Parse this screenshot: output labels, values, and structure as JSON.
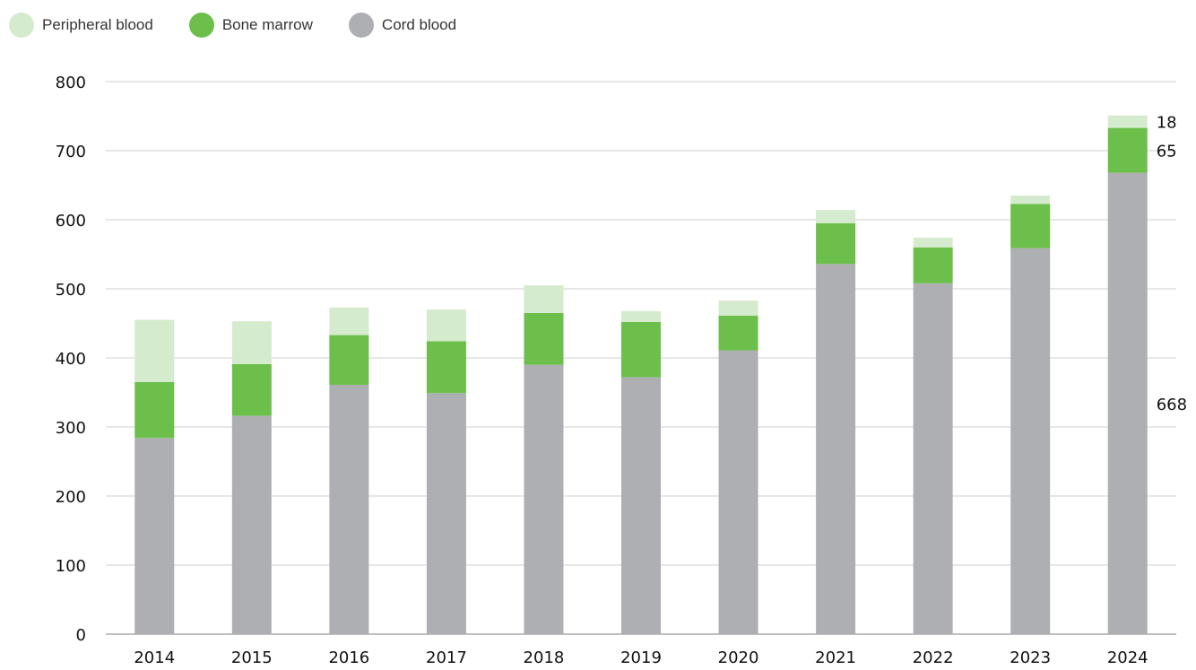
{
  "colors": {
    "peripheral_blood": "#d5ebcd",
    "bone_marrow": "#6cbf4a",
    "cord_blood": "#aeafb3",
    "grid": "#cfcfcf"
  },
  "chart_data": {
    "type": "bar",
    "stacked": true,
    "title": "",
    "xlabel": "",
    "ylabel": "",
    "ylim": [
      0,
      800
    ],
    "yticks": [
      0,
      100,
      200,
      300,
      400,
      500,
      600,
      700,
      800
    ],
    "grid": true,
    "legend_position": "top-left",
    "categories": [
      "2014",
      "2015",
      "2016",
      "2017",
      "2018",
      "2019",
      "2020",
      "2021",
      "2022",
      "2023",
      "2024"
    ],
    "series": [
      {
        "name": "Cord blood",
        "color": "#aeafb3",
        "values": [
          284,
          316,
          361,
          349,
          390,
          372,
          411,
          536,
          508,
          559,
          668
        ]
      },
      {
        "name": "Bone marrow",
        "color": "#6cbf4a",
        "values": [
          81,
          75,
          72,
          75,
          75,
          80,
          50,
          59,
          52,
          64,
          65
        ]
      },
      {
        "name": "Peripheral blood",
        "color": "#d5ebcd",
        "values": [
          90,
          62,
          40,
          46,
          40,
          16,
          22,
          19,
          14,
          12,
          18
        ]
      }
    ],
    "legend_order": [
      "Peripheral blood",
      "Bone marrow",
      "Cord blood"
    ],
    "annotations": [
      {
        "category": "2024",
        "series": "Peripheral blood",
        "text": "18"
      },
      {
        "category": "2024",
        "series": "Bone marrow",
        "text": "65"
      },
      {
        "category": "2024",
        "series": "Cord blood",
        "text": "668"
      }
    ]
  }
}
